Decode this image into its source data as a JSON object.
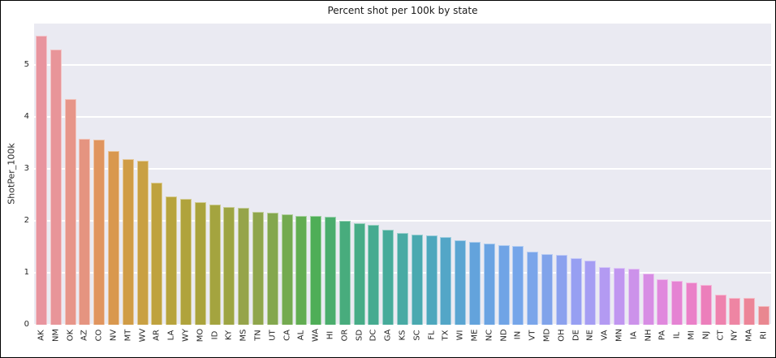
{
  "figure": {
    "background": "#ffffff",
    "plot_background": "#eaeaf2",
    "grid_color": "#ffffff",
    "text_color": "#262626",
    "frame_color": "#000000",
    "style": "seaborn-darkgrid"
  },
  "chart_data": {
    "type": "bar",
    "title": "Percent shot per 100k by state",
    "xlabel": "",
    "ylabel": "ShotPer_100k",
    "ylim": [
      0,
      5.8
    ],
    "yticks": [
      0,
      1,
      2,
      3,
      4,
      5
    ],
    "grid": "horizontal",
    "legend": "none",
    "categories": [
      "AK",
      "NM",
      "OK",
      "AZ",
      "CO",
      "NV",
      "MT",
      "WV",
      "AR",
      "LA",
      "WY",
      "MO",
      "ID",
      "KY",
      "MS",
      "TN",
      "UT",
      "CA",
      "AL",
      "WA",
      "HI",
      "OR",
      "SD",
      "DC",
      "GA",
      "KS",
      "SC",
      "FL",
      "TX",
      "WI",
      "ME",
      "NC",
      "ND",
      "IN",
      "VT",
      "MD",
      "OH",
      "DE",
      "NE",
      "VA",
      "MN",
      "IA",
      "NH",
      "PA",
      "IL",
      "MI",
      "NJ",
      "CT",
      "NY",
      "MA",
      "RI"
    ],
    "values": [
      5.56,
      5.3,
      4.34,
      3.58,
      3.56,
      3.35,
      3.19,
      3.16,
      2.74,
      2.47,
      2.43,
      2.36,
      2.32,
      2.27,
      2.25,
      2.18,
      2.15,
      2.12,
      2.1,
      2.09,
      2.08,
      2.0,
      1.96,
      1.92,
      1.83,
      1.76,
      1.74,
      1.72,
      1.69,
      1.62,
      1.6,
      1.56,
      1.54,
      1.52,
      1.41,
      1.36,
      1.35,
      1.29,
      1.23,
      1.11,
      1.1,
      1.08,
      0.99,
      0.88,
      0.85,
      0.82,
      0.77,
      0.58,
      0.52,
      0.51,
      0.36
    ],
    "bar_colors": [
      "#e8949e",
      "#e89599",
      "#e79589",
      "#e59480",
      "#e0955f",
      "#d9984e",
      "#d09c46",
      "#c9a043",
      "#bfa23e",
      "#b7a33c",
      "#b0a33c",
      "#aaa33d",
      "#a4a43f",
      "#9da443",
      "#96a44b",
      "#8fa54c",
      "#83a74e",
      "#74aa50",
      "#62ad52",
      "#4fae57",
      "#4bad6d",
      "#48ac7d",
      "#47ac87",
      "#46ab90",
      "#46ab9a",
      "#48aaa4",
      "#4aa9b0",
      "#4da7bd",
      "#53a6c7",
      "#5aa5d2",
      "#63a3dc",
      "#6aa3e2",
      "#70a4e6",
      "#75a5e9",
      "#7aa5ea",
      "#80a3ea",
      "#8ba1ee",
      "#979ff2",
      "#a59df3",
      "#b39af2",
      "#c096f0",
      "#cc92ea",
      "#d78de4",
      "#e088dd",
      "#e583d3",
      "#ea80c8",
      "#ec7fbb",
      "#ee82ae",
      "#ee85a3",
      "#ec8598",
      "#e98790"
    ]
  }
}
